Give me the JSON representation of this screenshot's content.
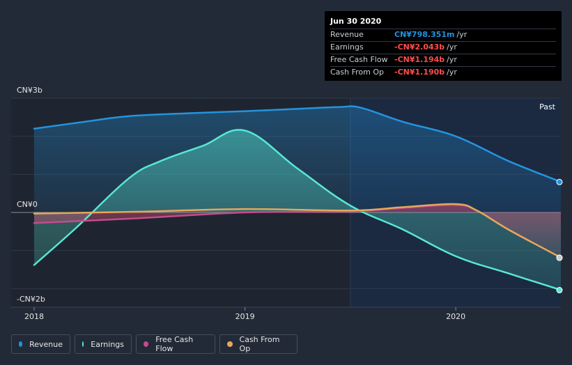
{
  "tooltip": {
    "date": "Jun 30 2020",
    "rows": [
      {
        "label": "Revenue",
        "value": "CN¥798.351m",
        "unit": "/yr",
        "color": "#2394df"
      },
      {
        "label": "Earnings",
        "value": "-CN¥2.043b",
        "unit": "/yr",
        "color": "#ff4d4d"
      },
      {
        "label": "Free Cash Flow",
        "value": "-CN¥1.194b",
        "unit": "/yr",
        "color": "#ff4d4d"
      },
      {
        "label": "Cash From Op",
        "value": "-CN¥1.190b",
        "unit": "/yr",
        "color": "#ff4d4d"
      }
    ]
  },
  "past_label": "Past",
  "chart_data": {
    "type": "line",
    "title": "",
    "xlabel": "",
    "ylabel": "",
    "y_unit": "CN¥b",
    "ylim": [
      -2.5,
      3
    ],
    "y_ticks": [
      {
        "value": 3,
        "label": "CN¥3b"
      },
      {
        "value": 0,
        "label": "CN¥0"
      },
      {
        "value": -2,
        "label": "-CN¥2b"
      }
    ],
    "x_ticks": [
      {
        "value": 2018.0,
        "label": "2018"
      },
      {
        "value": 2019.0,
        "label": "2019"
      },
      {
        "value": 2020.0,
        "label": "2020"
      }
    ],
    "xlim": [
      2017.9,
      2020.5
    ],
    "past_region_start": 2019.5,
    "legend_position": "bottom-left",
    "series": [
      {
        "name": "Revenue",
        "color": "#2394df",
        "x": [
          2018.0,
          2018.25,
          2018.45,
          2018.75,
          2019.0,
          2019.25,
          2019.45,
          2019.55,
          2019.75,
          2020.0,
          2020.25,
          2020.5
        ],
        "y": [
          2.2,
          2.39,
          2.53,
          2.61,
          2.66,
          2.72,
          2.77,
          2.75,
          2.38,
          2.0,
          1.35,
          0.8
        ]
      },
      {
        "name": "Earnings",
        "color": "#58e8d2",
        "x": [
          2018.0,
          2018.2,
          2018.45,
          2018.6,
          2018.8,
          2019.0,
          2019.25,
          2019.5,
          2019.75,
          2020.0,
          2020.25,
          2020.5
        ],
        "y": [
          -1.38,
          -0.4,
          0.9,
          1.35,
          1.75,
          2.15,
          1.15,
          0.18,
          -0.45,
          -1.15,
          -1.6,
          -2.04
        ]
      },
      {
        "name": "Free Cash Flow",
        "color": "#c54b8c",
        "x": [
          2018.0,
          2018.5,
          2019.0,
          2019.5,
          2019.75,
          2020.0,
          2020.1,
          2020.25,
          2020.5
        ],
        "y": [
          -0.28,
          -0.15,
          0.0,
          0.03,
          0.12,
          0.2,
          0.05,
          -0.45,
          -1.19
        ]
      },
      {
        "name": "Cash From Op",
        "color": "#e5a85a",
        "x": [
          2018.0,
          2018.5,
          2019.0,
          2019.5,
          2019.75,
          2020.0,
          2020.1,
          2020.25,
          2020.5
        ],
        "y": [
          -0.03,
          0.02,
          0.09,
          0.05,
          0.14,
          0.22,
          0.05,
          -0.45,
          -1.19
        ]
      }
    ]
  }
}
